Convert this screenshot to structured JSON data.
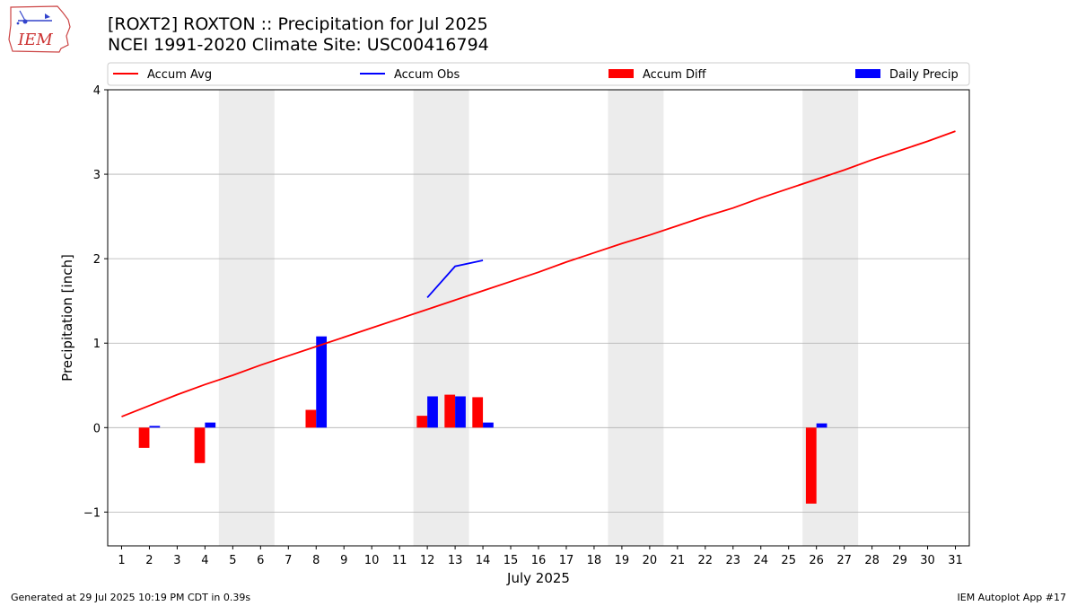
{
  "header": {
    "logo_text": "IEM",
    "title_line1": "[ROXT2] ROXTON :: Precipitation for Jul 2025",
    "title_line2": "NCEI 1991-2020 Climate Site: USC00416794"
  },
  "footer": {
    "left": "Generated at 29 Jul 2025 10:19 PM CDT in 0.39s",
    "right": "IEM Autoplot App #17"
  },
  "colors": {
    "accum_avg": "#ff0000",
    "accum_obs": "#0000ff",
    "accum_diff": "#ff0000",
    "daily_precip": "#0000ff",
    "weekend_shade": "#ececec",
    "grid": "#b0b0b0"
  },
  "chart_data": {
    "type": "bar",
    "xlabel": "July 2025",
    "ylabel": "Precipitation [inch]",
    "xlim": [
      0.5,
      31.5
    ],
    "ylim": [
      -1.4,
      4
    ],
    "yticks": [
      -1,
      0,
      1,
      2,
      3,
      4
    ],
    "ytick_labels": [
      "−1",
      "0",
      "1",
      "2",
      "3",
      "4"
    ],
    "xticks": [
      1,
      2,
      3,
      4,
      5,
      6,
      7,
      8,
      9,
      10,
      11,
      12,
      13,
      14,
      15,
      16,
      17,
      18,
      19,
      20,
      21,
      22,
      23,
      24,
      25,
      26,
      27,
      28,
      29,
      30,
      31
    ],
    "grid": "horizontal",
    "legend_placement": "top",
    "weekend_shading": [
      [
        5,
        6
      ],
      [
        12,
        13
      ],
      [
        19,
        20
      ],
      [
        26,
        27
      ]
    ],
    "series": [
      {
        "name": "Accum Avg",
        "kind": "line",
        "x": [
          1,
          2,
          3,
          4,
          5,
          6,
          7,
          8,
          9,
          10,
          11,
          12,
          13,
          14,
          15,
          16,
          17,
          18,
          19,
          20,
          21,
          22,
          23,
          24,
          25,
          26,
          27,
          28,
          29,
          30,
          31
        ],
        "values": [
          0.13,
          0.26,
          0.39,
          0.51,
          0.62,
          0.74,
          0.85,
          0.96,
          1.07,
          1.18,
          1.29,
          1.4,
          1.51,
          1.62,
          1.73,
          1.84,
          1.96,
          2.07,
          2.18,
          2.28,
          2.39,
          2.5,
          2.6,
          2.72,
          2.83,
          2.94,
          3.05,
          3.17,
          3.28,
          3.39,
          3.51
        ]
      },
      {
        "name": "Accum Obs",
        "kind": "line",
        "x": [
          12,
          13,
          14
        ],
        "values": [
          1.54,
          1.91,
          1.98
        ]
      },
      {
        "name": "Accum Diff",
        "kind": "bar",
        "x": [
          2,
          4,
          8,
          12,
          13,
          14,
          26
        ],
        "values": [
          -0.24,
          -0.42,
          0.21,
          0.14,
          0.39,
          0.36,
          -0.9
        ]
      },
      {
        "name": "Daily Precip",
        "kind": "bar",
        "x": [
          2,
          4,
          8,
          12,
          13,
          14,
          26
        ],
        "values": [
          0.02,
          0.06,
          1.08,
          0.37,
          0.37,
          0.06,
          0.05
        ]
      }
    ]
  }
}
